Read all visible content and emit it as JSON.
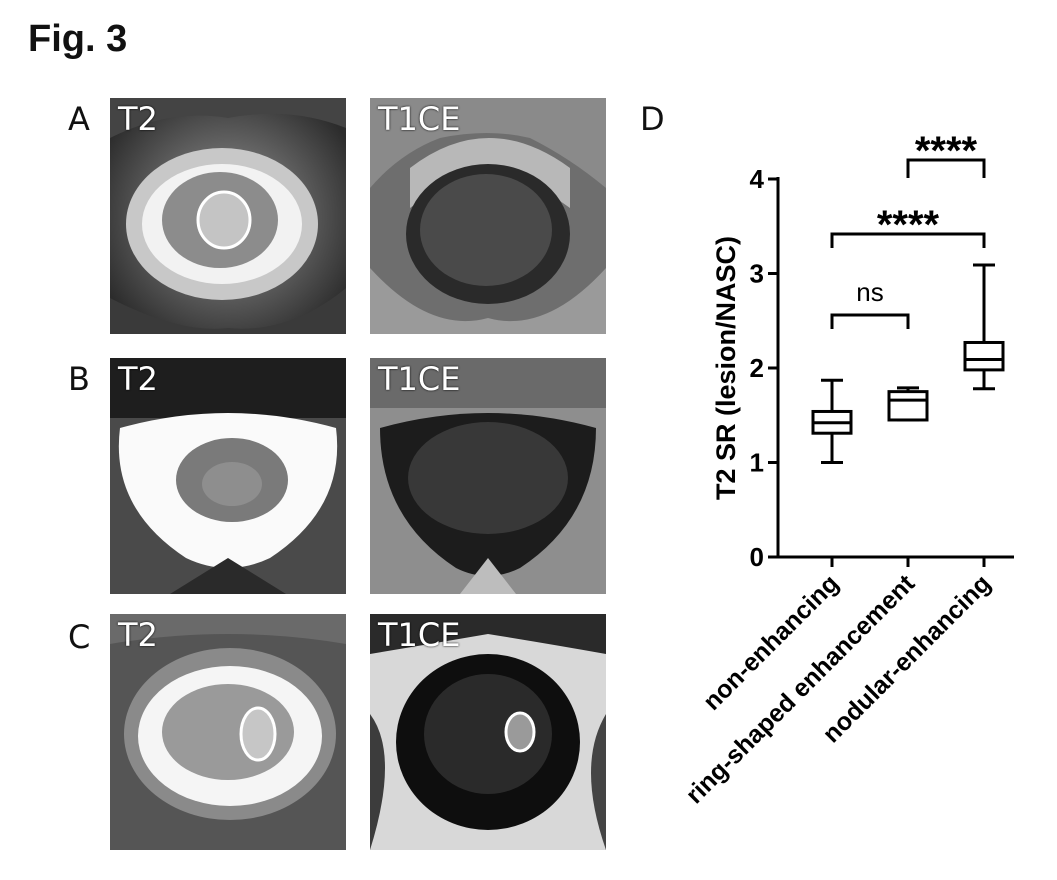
{
  "figure": {
    "title": "Fig. 3"
  },
  "panels": [
    {
      "letter": "A",
      "images": [
        {
          "sequence": "T2"
        },
        {
          "sequence": "T1CE"
        }
      ]
    },
    {
      "letter": "B",
      "images": [
        {
          "sequence": "T2"
        },
        {
          "sequence": "T1CE"
        }
      ]
    },
    {
      "letter": "C",
      "images": [
        {
          "sequence": "T2"
        },
        {
          "sequence": "T1CE"
        }
      ]
    }
  ],
  "chart_panel_letter": "D",
  "chart_data": {
    "type": "box",
    "ylabel": "T2 SR (lesion/NASC)",
    "ylim": [
      0,
      4
    ],
    "yticks": [
      0,
      1,
      2,
      3,
      4
    ],
    "categories": [
      "non-enhancing",
      "ring-shaped enhancement",
      "nodular-enhancing"
    ],
    "boxes": [
      {
        "category": "non-enhancing",
        "min": 1.0,
        "q1": 1.31,
        "median": 1.42,
        "q3": 1.54,
        "max": 1.87
      },
      {
        "category": "ring-shaped enhancement",
        "min": 1.45,
        "q1": 1.45,
        "median": 1.66,
        "q3": 1.75,
        "max": 1.79
      },
      {
        "category": "nodular-enhancing",
        "min": 1.78,
        "q1": 1.98,
        "median": 2.09,
        "q3": 2.27,
        "max": 3.09
      }
    ],
    "significance": [
      {
        "from": 0,
        "to": 1,
        "label": "ns"
      },
      {
        "from": 0,
        "to": 2,
        "label": "****"
      },
      {
        "from": 1,
        "to": 2,
        "label": "****"
      }
    ],
    "grid": false
  }
}
